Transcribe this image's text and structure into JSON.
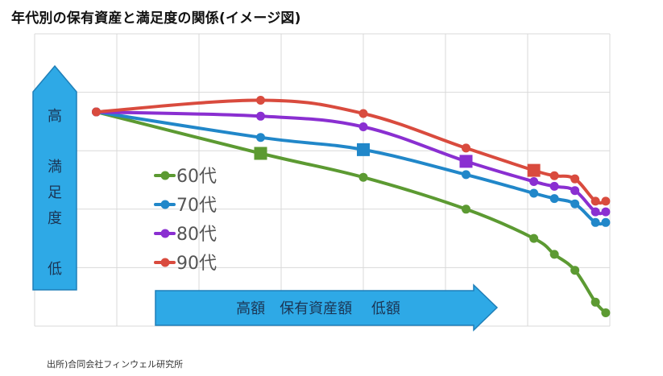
{
  "title": "年代別の保有資産と満足度の関係(イメージ図)",
  "source": "出所)合同会社フィンウェル研究所",
  "colors": {
    "grid": "#d9d9d9",
    "arrow_fill": "#2ea9e6",
    "arrow_stroke": "#1f7fb8",
    "arrow_text": "#1b3554"
  },
  "y_arrow": {
    "top_label": "高",
    "middle_label": [
      "満",
      "足",
      "度"
    ],
    "bottom_label": "低"
  },
  "x_arrow": {
    "label": "高額　保有資産額　 低額"
  },
  "chart_data": {
    "type": "line",
    "title": "年代別の保有資産と満足度の関係(イメージ図)",
    "xlabel": "高額　保有資産額　 低額",
    "ylabel": "高 満足度 低",
    "legend_position": "center-left",
    "grid": true,
    "xlim": [
      0,
      14
    ],
    "ylim": [
      0,
      5.5
    ],
    "series": [
      {
        "name": "60代",
        "color": "#5c9a32",
        "x": [
          1.5,
          5.5,
          8,
          10.5,
          12.15,
          12.65,
          13.15,
          13.65,
          13.9
        ],
        "y": [
          4.03,
          3.25,
          2.8,
          2.2,
          1.65,
          1.35,
          1.05,
          0.45,
          0.25
        ],
        "milestone_index": 1
      },
      {
        "name": "70代",
        "color": "#2187c9",
        "x": [
          1.5,
          5.5,
          8,
          10.5,
          12.15,
          12.65,
          13.15,
          13.65,
          13.9
        ],
        "y": [
          4.03,
          3.55,
          3.32,
          2.85,
          2.5,
          2.4,
          2.3,
          1.95,
          1.95
        ],
        "milestone_index": 2
      },
      {
        "name": "80代",
        "color": "#8a2fd1",
        "x": [
          1.5,
          5.5,
          8,
          10.5,
          12.15,
          12.65,
          13.15,
          13.65,
          13.9
        ],
        "y": [
          4.03,
          3.95,
          3.75,
          3.1,
          2.72,
          2.63,
          2.55,
          2.15,
          2.15
        ],
        "milestone_index": 3
      },
      {
        "name": "90代",
        "color": "#d94b3e",
        "x": [
          1.5,
          5.5,
          8,
          10.5,
          12.15,
          12.65,
          13.15,
          13.65,
          13.9
        ],
        "y": [
          4.03,
          4.25,
          4.0,
          3.35,
          2.93,
          2.83,
          2.77,
          2.35,
          2.35
        ],
        "milestone_index": 4
      }
    ]
  }
}
